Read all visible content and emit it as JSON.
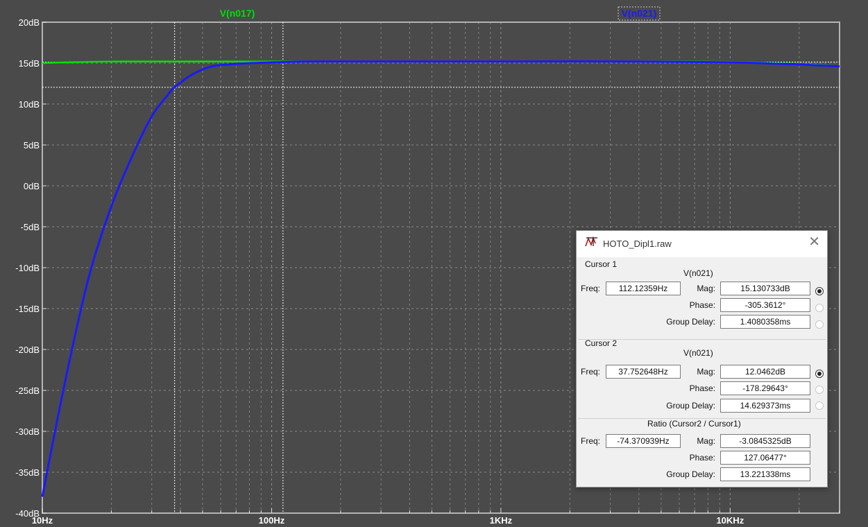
{
  "chart_data": {
    "type": "line",
    "xscale": "log",
    "xlim": [
      10,
      30000
    ],
    "ylim": [
      -40,
      20
    ],
    "grid": true,
    "x_ticks": [
      "10Hz",
      "100Hz",
      "1KHz",
      "10KHz"
    ],
    "y_ticks": [
      "20dB",
      "15dB",
      "10dB",
      "5dB",
      "0dB",
      "-5dB",
      "-10dB",
      "-15dB",
      "-20dB",
      "-25dB",
      "-30dB",
      "-35dB",
      "-40dB"
    ],
    "series": [
      {
        "name": "V(n017)",
        "color": "#00e000",
        "x": [
          10,
          13,
          22,
          50,
          100,
          500,
          1000,
          5000,
          10000,
          20000,
          30000
        ],
        "y": [
          15.0,
          15.1,
          15.2,
          15.2,
          15.2,
          15.2,
          15.2,
          15.2,
          15.15,
          14.9,
          14.6
        ]
      },
      {
        "name": "V(n021)",
        "color": "#1a1aff",
        "x": [
          10,
          11,
          13,
          16,
          20,
          25,
          30,
          35,
          37.75,
          45,
          55,
          70,
          90,
          112.12,
          150,
          200,
          300,
          500,
          1000,
          3000,
          10000,
          15000,
          20000,
          25000,
          30000
        ],
        "y": [
          -38.0,
          -32,
          -22,
          -11,
          -2.5,
          4,
          8.5,
          11,
          12.05,
          13.6,
          14.6,
          14.9,
          15.05,
          15.13,
          15.2,
          15.2,
          15.2,
          15.2,
          15.2,
          15.2,
          15.1,
          14.95,
          14.85,
          14.7,
          14.6
        ]
      }
    ],
    "cursor1": {
      "x": 112.12359,
      "y": 15.130733
    },
    "cursor2": {
      "x": 37.752648,
      "y": 12.0462
    }
  },
  "colors": {
    "background": "#4a4a4a",
    "plot_frame": "#b4b4b4",
    "grid": "#9a9a9a",
    "tick_text": "#ffffff"
  },
  "dialog": {
    "title": "HOTO_Dipl1.raw",
    "close_icon": "close-icon",
    "cursor1": {
      "header": "Cursor 1",
      "trace": "V(n021)",
      "freq_label": "Freq:",
      "freq": "112.12359Hz",
      "mag_label": "Mag:",
      "mag": "15.130733dB",
      "phase_label": "Phase:",
      "phase": "-305.3612°",
      "gd_label": "Group Delay:",
      "gd": "1.4080358ms"
    },
    "cursor2": {
      "header": "Cursor 2",
      "trace": "V(n021)",
      "freq_label": "Freq:",
      "freq": "37.752648Hz",
      "mag_label": "Mag:",
      "mag": "12.0462dB",
      "phase_label": "Phase:",
      "phase": "-178.29643°",
      "gd_label": "Group Delay:",
      "gd": "14.629373ms"
    },
    "ratio": {
      "header": "Ratio (Cursor2 / Cursor1)",
      "freq_label": "Freq:",
      "freq": "-74.370939Hz",
      "mag_label": "Mag:",
      "mag": "-3.0845325dB",
      "phase_label": "Phase:",
      "phase": "127.06477°",
      "gd_label": "Group Delay:",
      "gd": "13.221338ms"
    }
  }
}
